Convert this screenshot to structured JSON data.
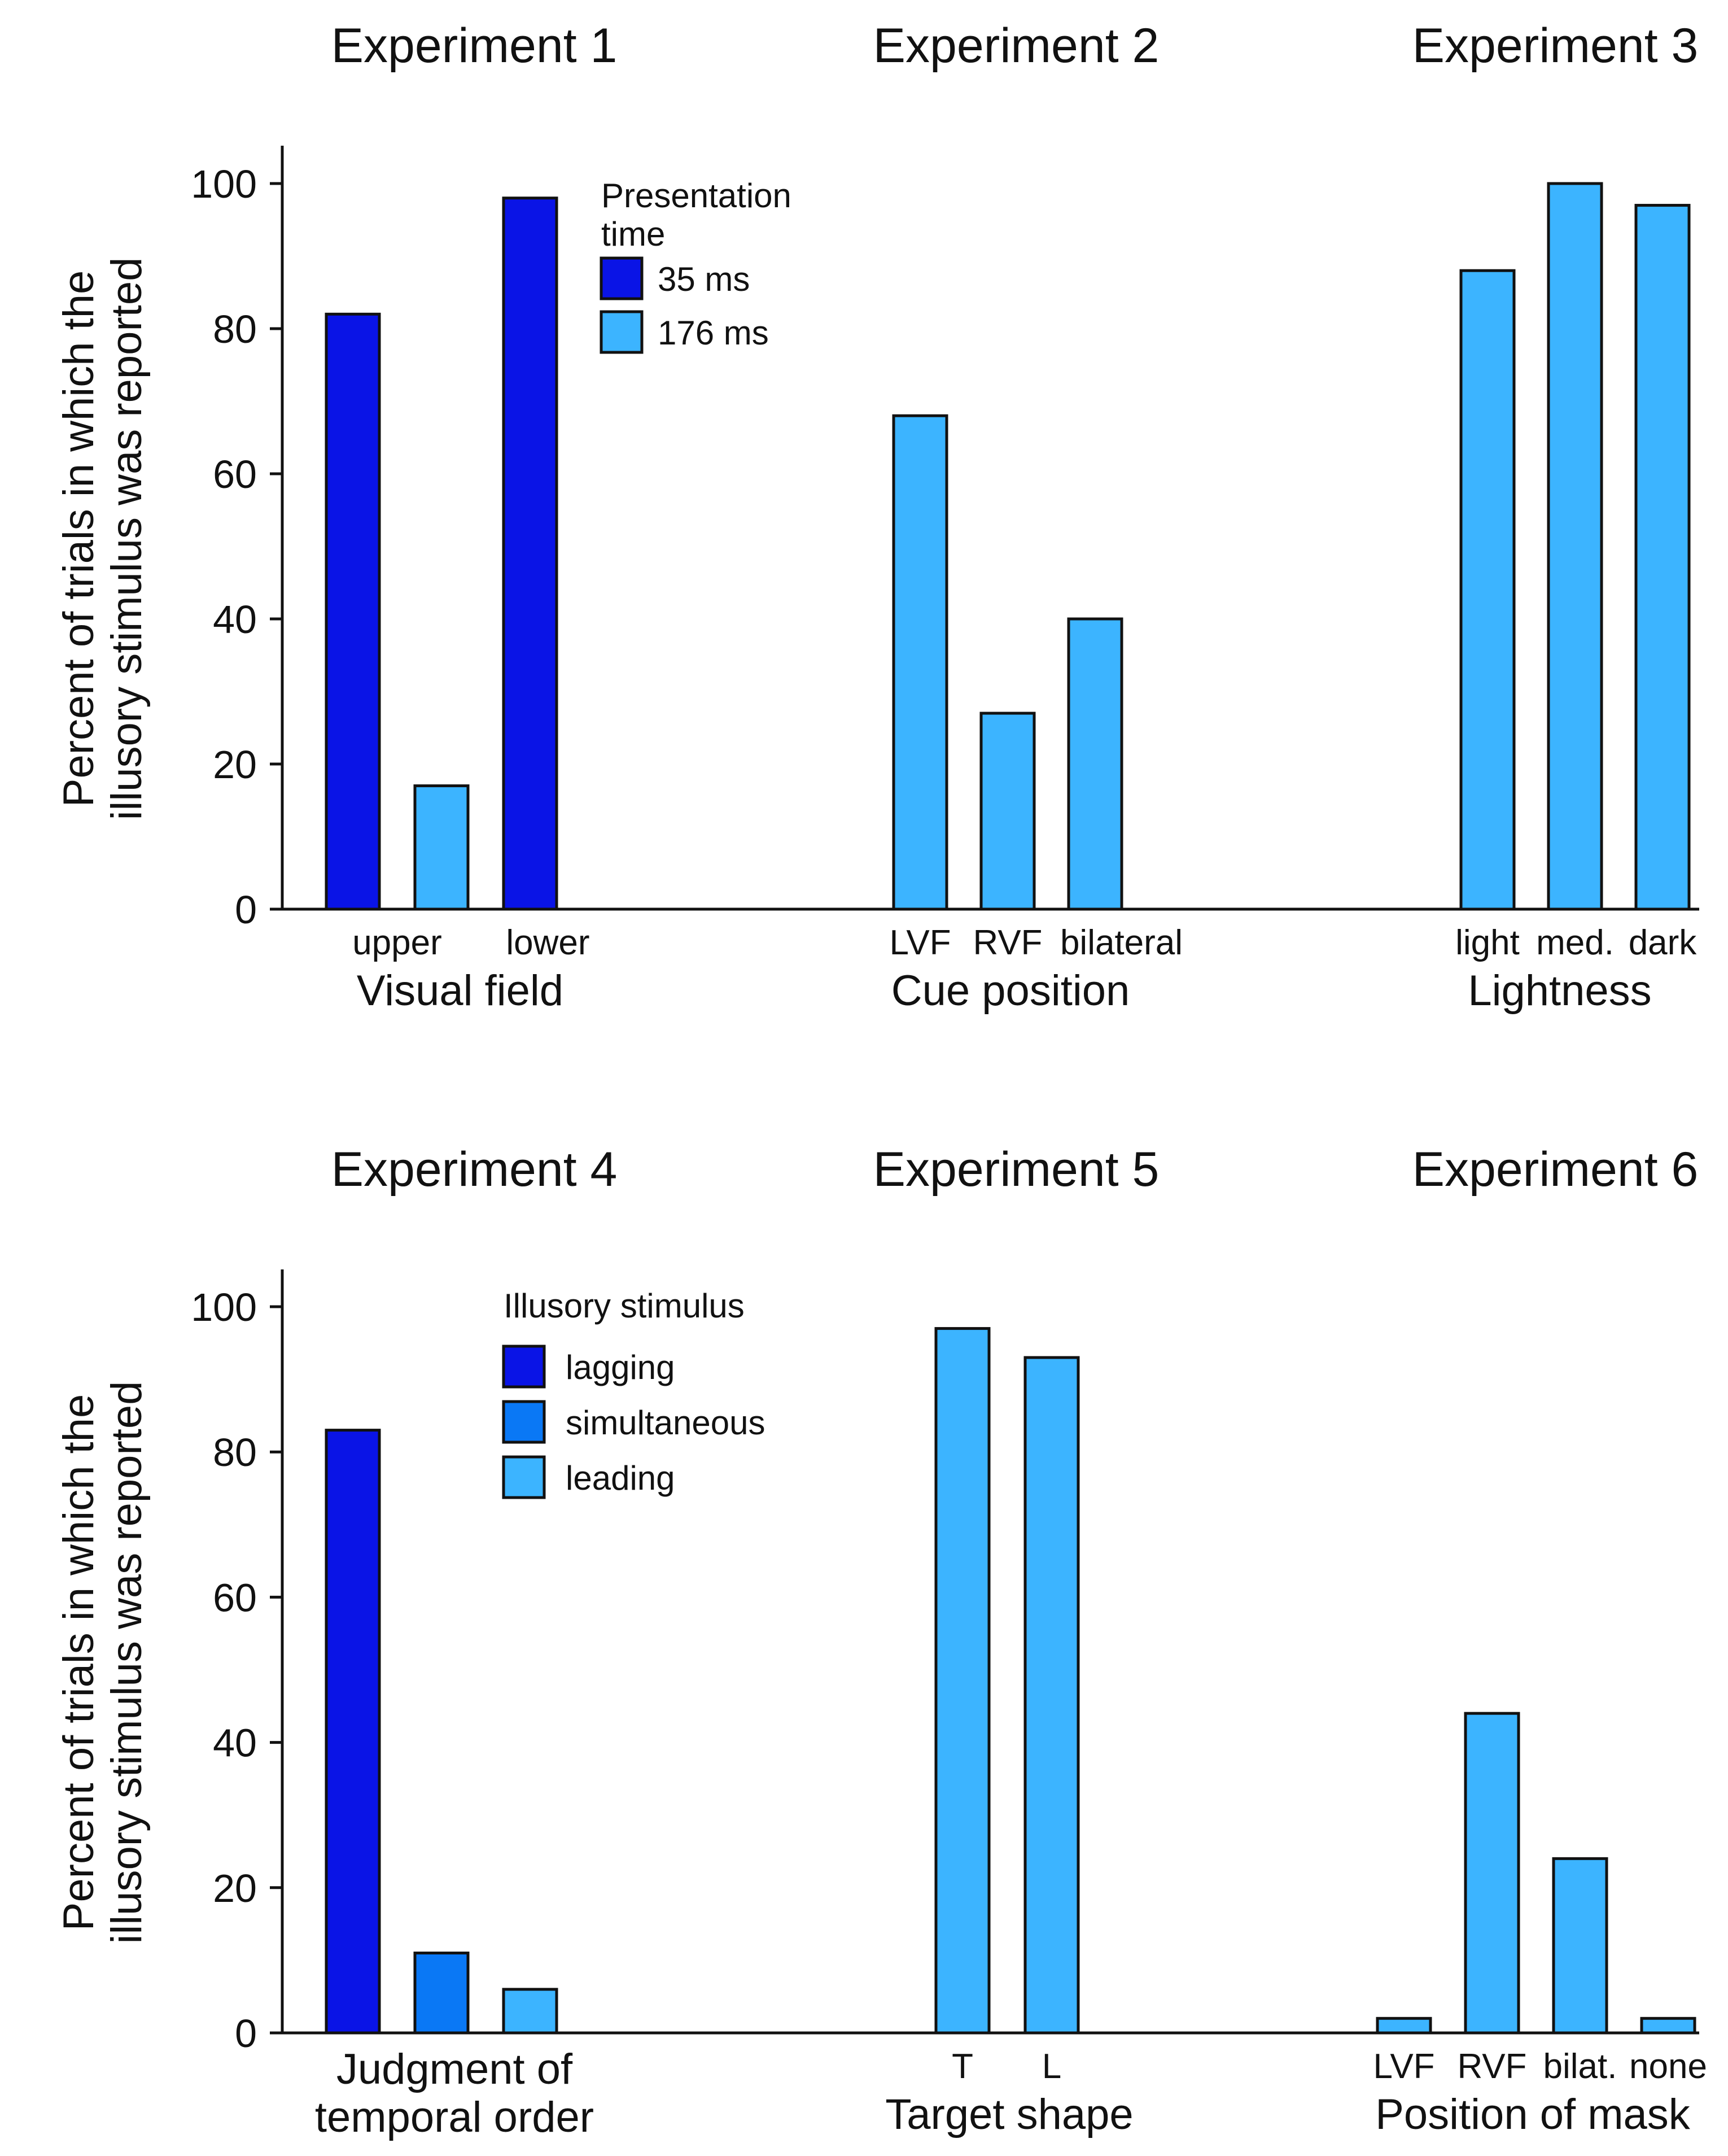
{
  "colors": {
    "dark_blue": "#0A14E6",
    "mid_blue": "#0A78F5",
    "light_blue": "#3CB4FF"
  },
  "chart_data": [
    {
      "type": "bar",
      "panel": "top",
      "ylabel": [
        "Percent of trials in which the",
        "illusory stimulus was reported"
      ],
      "ylim": [
        0,
        100
      ],
      "yticks": [
        "0",
        "20",
        "40",
        "60",
        "80",
        "100"
      ],
      "legend": {
        "title": [
          "Presentation",
          "time"
        ],
        "items": [
          {
            "label": "35 ms",
            "color": "#0A14E6"
          },
          {
            "label": "176 ms",
            "color": "#3CB4FF"
          }
        ]
      },
      "experiments": [
        {
          "title": "Experiment 1",
          "group_label": [
            "Visual field"
          ],
          "bars": [
            {
              "value": 82,
              "color": "#0A14E6"
            },
            {
              "value": 17,
              "color": "#3CB4FF"
            },
            {
              "value": 98,
              "color": "#0A14E6"
            }
          ],
          "category_labels": [
            {
              "text": "upper",
              "slot": 0.5
            },
            {
              "text": "lower",
              "slot": 2.2
            }
          ]
        },
        {
          "title": "Experiment 2",
          "group_label": [
            "Cue position"
          ],
          "bars": [
            {
              "value": 68,
              "color": "#3CB4FF"
            },
            {
              "value": 27,
              "color": "#3CB4FF"
            },
            {
              "value": 40,
              "color": "#3CB4FF"
            }
          ],
          "category_labels": [
            {
              "text": "LVF",
              "slot": 0
            },
            {
              "text": "RVF",
              "slot": 1
            },
            {
              "text": "bilateral",
              "slot": 2.3
            }
          ]
        },
        {
          "title": "Experiment 3",
          "group_label": [
            "Lightness"
          ],
          "bars": [
            {
              "value": 88,
              "color": "#3CB4FF"
            },
            {
              "value": 100,
              "color": "#3CB4FF"
            },
            {
              "value": 97,
              "color": "#3CB4FF"
            }
          ],
          "category_labels": [
            {
              "text": "light",
              "slot": 0
            },
            {
              "text": "med.",
              "slot": 1
            },
            {
              "text": "dark",
              "slot": 2
            }
          ]
        }
      ]
    },
    {
      "type": "bar",
      "panel": "bottom",
      "ylabel": [
        "Percent of trials in which the",
        "illusory stimulus was reported"
      ],
      "ylim": [
        0,
        100
      ],
      "yticks": [
        "0",
        "20",
        "40",
        "60",
        "80",
        "100"
      ],
      "legend": {
        "title": [
          "Illusory stimulus"
        ],
        "items": [
          {
            "label": "lagging",
            "color": "#0A14E6"
          },
          {
            "label": "simultaneous",
            "color": "#0A78F5"
          },
          {
            "label": "leading",
            "color": "#3CB4FF"
          }
        ]
      },
      "experiments": [
        {
          "title": "Experiment 4",
          "group_label": [
            "Judgment of",
            "temporal order"
          ],
          "bars": [
            {
              "value": 83,
              "color": "#0A14E6"
            },
            {
              "value": 11,
              "color": "#0A78F5"
            },
            {
              "value": 6,
              "color": "#3CB4FF"
            }
          ],
          "category_labels": []
        },
        {
          "title": "Experiment 5",
          "group_label": [
            "Target shape"
          ],
          "bars": [
            {
              "value": 97,
              "color": "#3CB4FF"
            },
            {
              "value": 93,
              "color": "#3CB4FF"
            }
          ],
          "category_labels": [
            {
              "text": "T",
              "slot": 0
            },
            {
              "text": "L",
              "slot": 1
            }
          ]
        },
        {
          "title": "Experiment 6",
          "group_label": [
            "Position of mask"
          ],
          "bars": [
            {
              "value": 2,
              "color": "#3CB4FF"
            },
            {
              "value": 44,
              "color": "#3CB4FF"
            },
            {
              "value": 24,
              "color": "#3CB4FF"
            },
            {
              "value": 2,
              "color": "#3CB4FF"
            }
          ],
          "category_labels": [
            {
              "text": "LVF",
              "slot": 0
            },
            {
              "text": "RVF",
              "slot": 1
            },
            {
              "text": "bilat.",
              "slot": 2
            },
            {
              "text": "none",
              "slot": 3
            }
          ]
        }
      ]
    }
  ]
}
